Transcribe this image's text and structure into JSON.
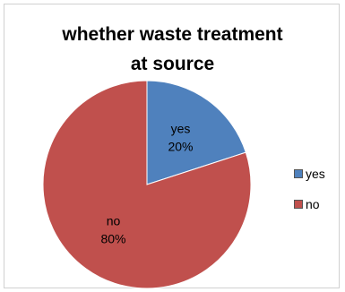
{
  "chart_data": {
    "type": "pie",
    "title_lines": [
      "whether waste treatment",
      "at source"
    ],
    "slices": [
      {
        "label": "yes",
        "value": 20,
        "percent_label": "20%",
        "color": "#4f81bd"
      },
      {
        "label": "no",
        "value": 80,
        "percent_label": "80%",
        "color": "#c0504d"
      }
    ],
    "legend_position": "right",
    "start_angle_deg": 0,
    "direction": "clockwise"
  }
}
